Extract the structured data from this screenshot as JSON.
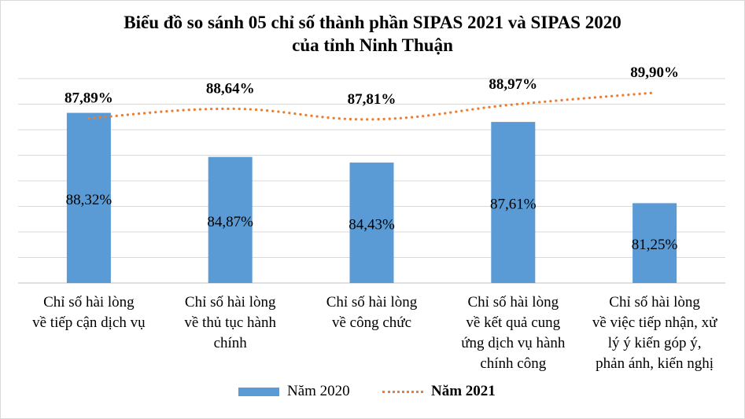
{
  "chart_data": {
    "type": "bar+line",
    "title_line1": "Biểu đồ so sánh 05 chỉ số thành phần SIPAS 2021 và SIPAS 2020",
    "title_line2": "của tỉnh Ninh Thuận",
    "categories": [
      [
        "Chỉ số hài lòng",
        "về tiếp cận dịch vụ"
      ],
      [
        "Chỉ số hài lòng",
        "về thủ tục hành",
        "chính"
      ],
      [
        "Chỉ số hài lòng",
        "về công chức"
      ],
      [
        "Chỉ số hài lòng",
        "về kết quả cung",
        "ứng dịch vụ hành",
        "chính công"
      ],
      [
        "Chỉ số hài lòng",
        "về việc tiếp nhận, xử",
        "lý ý kiến góp ý,",
        "phản ánh, kiến nghị"
      ]
    ],
    "series": [
      {
        "name": "Năm 2020",
        "kind": "bar",
        "color": "#5b9bd5",
        "values": [
          88.32,
          84.87,
          84.43,
          87.61,
          81.25
        ],
        "labels": [
          "88,32%",
          "84,87%",
          "84,43%",
          "87,61%",
          "81,25%"
        ]
      },
      {
        "name": "Năm 2021",
        "kind": "line-dotted",
        "color": "#ed7d31",
        "values": [
          87.89,
          88.64,
          87.81,
          88.97,
          89.9
        ],
        "labels": [
          "87,89%",
          "88,64%",
          "87,81%",
          "88,97%",
          "89,90%"
        ]
      }
    ],
    "ylim": [
      75,
      91
    ],
    "grid": true,
    "legend_position": "bottom"
  }
}
